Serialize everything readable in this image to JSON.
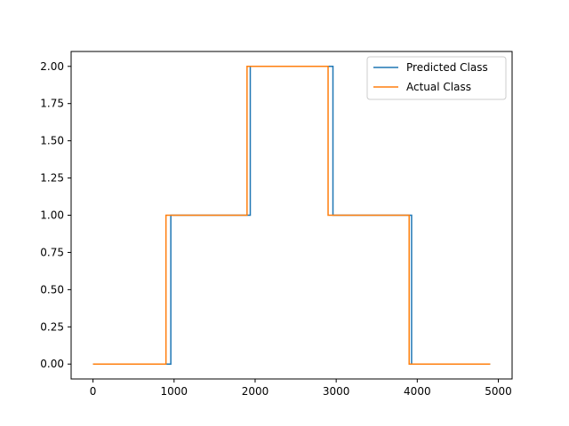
{
  "chart_data": {
    "type": "line",
    "title": "",
    "xlabel": "",
    "ylabel": "",
    "xlim": [
      -270,
      5170
    ],
    "ylim": [
      -0.1,
      2.1
    ],
    "x_ticks": [
      0,
      1000,
      2000,
      3000,
      4000,
      5000
    ],
    "x_tick_labels": [
      "0",
      "1000",
      "2000",
      "3000",
      "4000",
      "5000"
    ],
    "y_ticks": [
      0,
      0.25,
      0.5,
      0.75,
      1.0,
      1.25,
      1.5,
      1.75,
      2.0
    ],
    "y_tick_labels": [
      "0.00",
      "0.25",
      "0.50",
      "0.75",
      "1.00",
      "1.25",
      "1.50",
      "1.75",
      "2.00"
    ],
    "grid": false,
    "legend_position": "top-right",
    "series": [
      {
        "name": "Predicted Class",
        "color": "#1f77b4",
        "points": [
          [
            0,
            0
          ],
          [
            960,
            0
          ],
          [
            960,
            1
          ],
          [
            1940,
            1
          ],
          [
            1940,
            2
          ],
          [
            2960,
            2
          ],
          [
            2960,
            1
          ],
          [
            3930,
            1
          ],
          [
            3930,
            0
          ],
          [
            4900,
            0
          ]
        ]
      },
      {
        "name": "Actual Class",
        "color": "#ff7f0e",
        "points": [
          [
            0,
            0
          ],
          [
            900,
            0
          ],
          [
            900,
            1
          ],
          [
            1900,
            1
          ],
          [
            1900,
            2
          ],
          [
            2900,
            2
          ],
          [
            2900,
            1
          ],
          [
            3900,
            1
          ],
          [
            3900,
            0
          ],
          [
            4900,
            0
          ]
        ]
      }
    ]
  }
}
